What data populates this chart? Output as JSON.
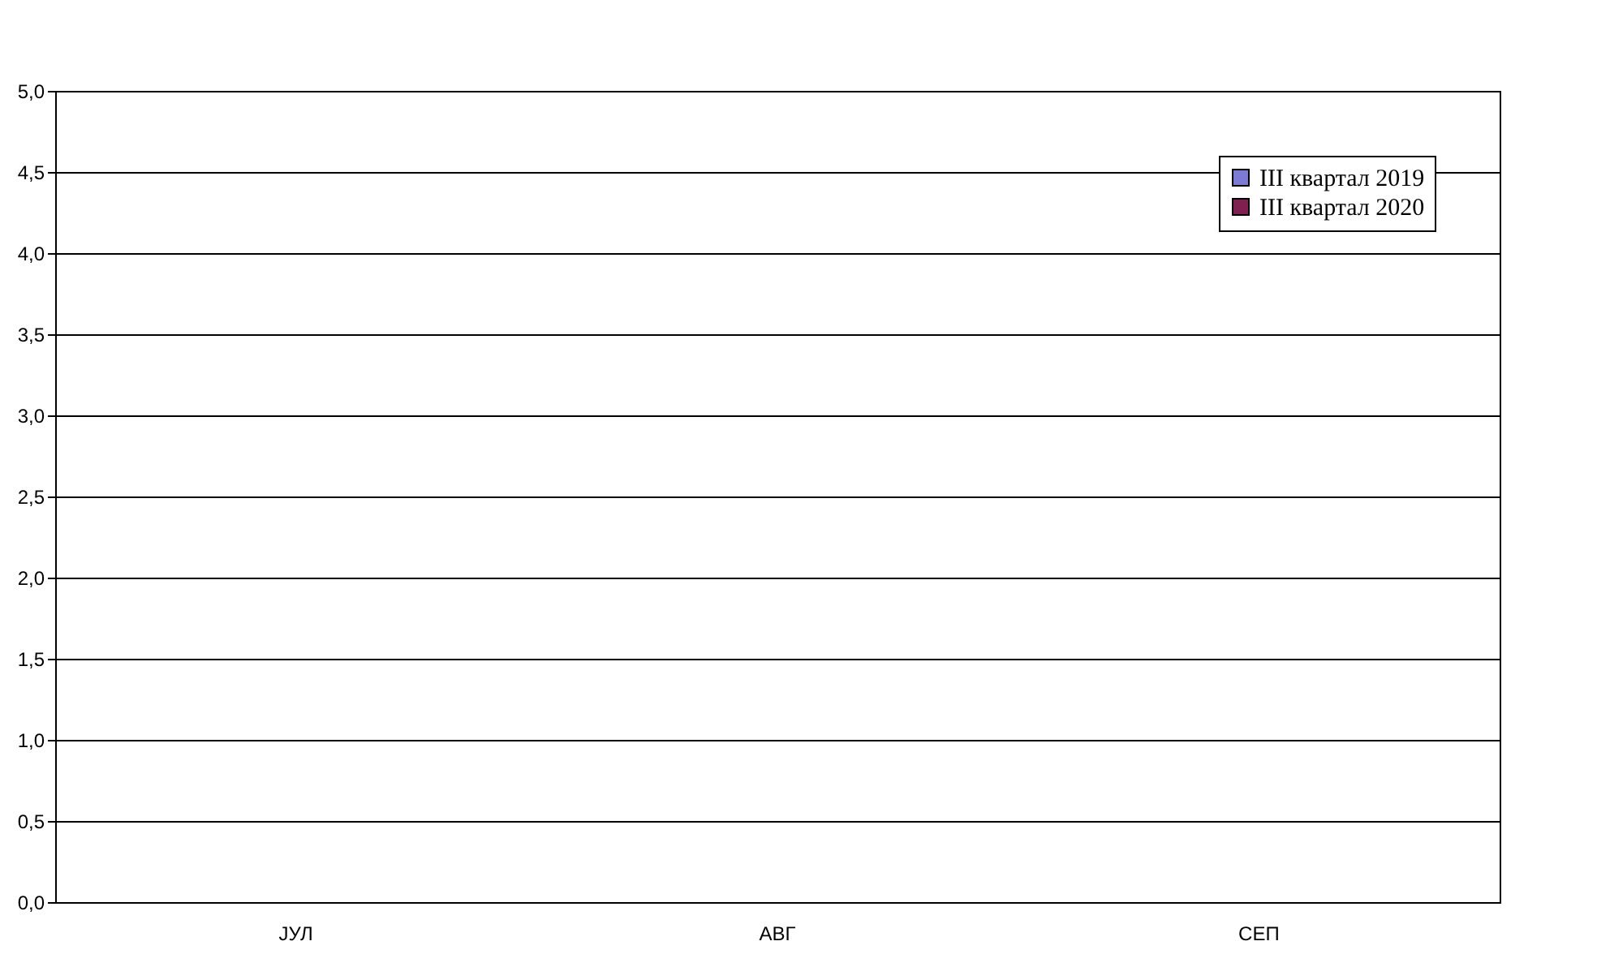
{
  "chart_data": {
    "type": "bar",
    "categories": [
      "ЈУЛ",
      "АВГ",
      "СЕП"
    ],
    "series": [
      {
        "name": "III квартал 2019",
        "color": "#7b7bd6",
        "values": [
          0,
          0,
          0
        ]
      },
      {
        "name": "III квартал 2020",
        "color": "#7f2050",
        "values": [
          0,
          0,
          0
        ]
      }
    ],
    "ylim": [
      0,
      5
    ],
    "yticks": [
      {
        "value": 0,
        "label": "0,0"
      },
      {
        "value": 0.5,
        "label": "0,5"
      },
      {
        "value": 1,
        "label": "1,0"
      },
      {
        "value": 1.5,
        "label": "1,5"
      },
      {
        "value": 2,
        "label": "2,0"
      },
      {
        "value": 2.5,
        "label": "2,5"
      },
      {
        "value": 3,
        "label": "3,0"
      },
      {
        "value": 3.5,
        "label": "3,5"
      },
      {
        "value": 4,
        "label": "4,0"
      },
      {
        "value": 4.5,
        "label": "4,5"
      },
      {
        "value": 5,
        "label": "5,0"
      }
    ],
    "grid": "y",
    "legend": "top right"
  }
}
